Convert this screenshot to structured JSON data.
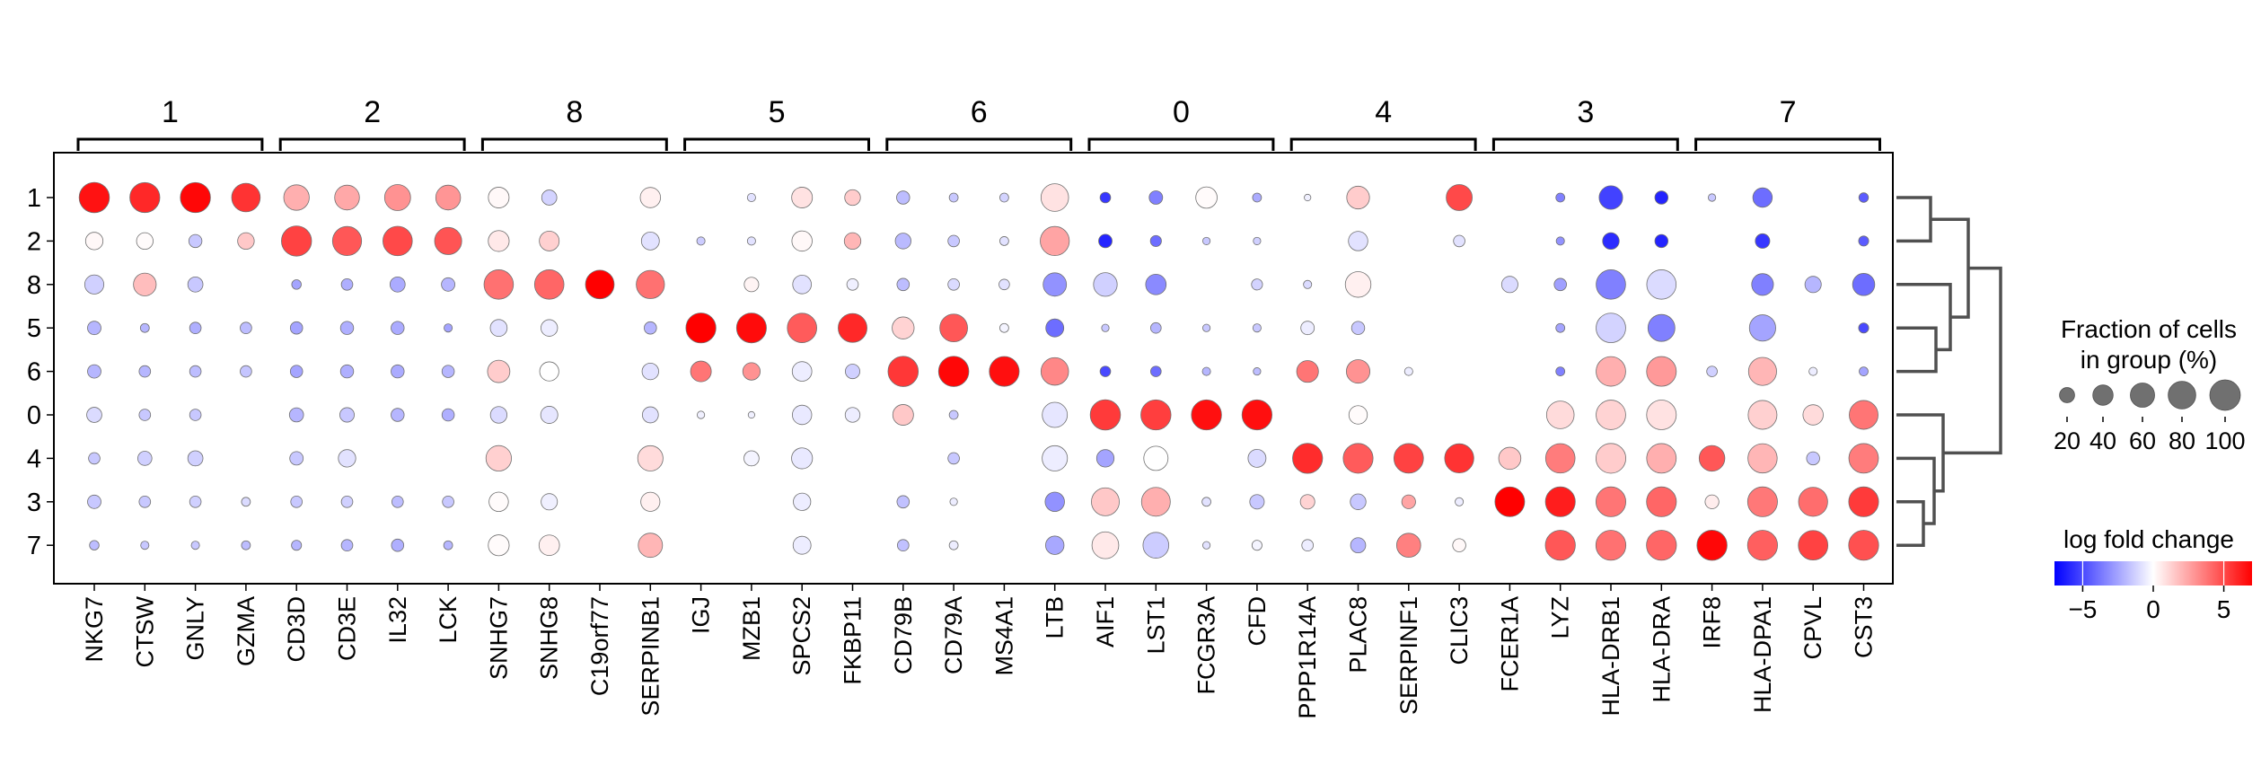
{
  "chart_data": {
    "type": "dotplot",
    "title": "",
    "xlabel": "",
    "ylabel": "",
    "groups": [
      {
        "label": "1",
        "genes": [
          "NKG7",
          "CTSW",
          "GNLY",
          "GZMA"
        ]
      },
      {
        "label": "2",
        "genes": [
          "CD3D",
          "CD3E",
          "IL32",
          "LCK"
        ]
      },
      {
        "label": "8",
        "genes": [
          "SNHG7",
          "SNHG8",
          "C19orf77",
          "SERPINB1"
        ]
      },
      {
        "label": "5",
        "genes": [
          "IGJ",
          "MZB1",
          "SPCS2",
          "FKBP11"
        ]
      },
      {
        "label": "6",
        "genes": [
          "CD79B",
          "CD79A",
          "MS4A1",
          "LTB"
        ]
      },
      {
        "label": "0",
        "genes": [
          "AIF1",
          "LST1",
          "FCGR3A",
          "CFD"
        ]
      },
      {
        "label": "4",
        "genes": [
          "PPP1R14A",
          "PLAC8",
          "SERPINF1",
          "CLIC3"
        ]
      },
      {
        "label": "3",
        "genes": [
          "FCER1A",
          "LYZ",
          "HLA-DRB1",
          "HLA-DRA"
        ]
      },
      {
        "label": "7",
        "genes": [
          "IRF8",
          "HLA-DPA1",
          "CPVL",
          "CST3"
        ]
      }
    ],
    "genes": [
      "NKG7",
      "CTSW",
      "GNLY",
      "GZMA",
      "CD3D",
      "CD3E",
      "IL32",
      "LCK",
      "SNHG7",
      "SNHG8",
      "C19orf77",
      "SERPINB1",
      "IGJ",
      "MZB1",
      "SPCS2",
      "FKBP11",
      "CD79B",
      "CD79A",
      "MS4A1",
      "LTB",
      "AIF1",
      "LST1",
      "FCGR3A",
      "CFD",
      "PPP1R14A",
      "PLAC8",
      "SERPINF1",
      "CLIC3",
      "FCER1A",
      "LYZ",
      "HLA-DRB1",
      "HLA-DRA",
      "IRF8",
      "HLA-DPA1",
      "CPVL",
      "CST3"
    ],
    "clusters": [
      "1",
      "2",
      "8",
      "5",
      "6",
      "0",
      "4",
      "3",
      "7"
    ],
    "fraction_pct": [
      [
        98,
        96,
        97,
        86,
        67,
        63,
        70,
        63,
        42,
        20,
        0,
        40,
        0,
        4,
        42,
        22,
        14,
        5,
        5,
        80,
        8,
        15,
        45,
        5,
        2,
        52,
        0,
        70,
        0,
        5,
        56,
        14,
        3,
        36,
        0,
        6
      ],
      [
        28,
        25,
        14,
        25,
        97,
        90,
        92,
        77,
        43,
        38,
        0,
        30,
        4,
        4,
        40,
        25,
        22,
        10,
        5,
        90,
        15,
        9,
        3,
        3,
        0,
        36,
        0,
        10,
        0,
        4,
        25,
        14,
        0,
        18,
        0,
        7
      ],
      [
        35,
        52,
        20,
        0,
        6,
        10,
        20,
        15,
        92,
        92,
        87,
        84,
        0,
        18,
        33,
        10,
        12,
        10,
        8,
        55,
        57,
        41,
        0,
        9,
        4,
        68,
        0,
        0,
        24,
        12,
        92,
        92,
        0,
        47,
        24,
        49
      ],
      [
        15,
        5,
        10,
        10,
        12,
        14,
        14,
        4,
        26,
        25,
        0,
        12,
        96,
        95,
        92,
        88,
        48,
        81,
        5,
        30,
        3,
        8,
        3,
        4,
        15,
        14,
        0,
        0,
        0,
        5,
        93,
        76,
        0,
        72,
        0,
        7
      ],
      [
        15,
        10,
        10,
        10,
        12,
        14,
        14,
        12,
        50,
        35,
        0,
        25,
        42,
        28,
        37,
        18,
        98,
        98,
        95,
        80,
        8,
        8,
        4,
        3,
        47,
        56,
        4,
        0,
        0,
        5,
        93,
        94,
        8,
        83,
        4,
        5
      ],
      [
        20,
        10,
        10,
        0,
        17,
        18,
        14,
        12,
        25,
        27,
        0,
        23,
        3,
        2,
        36,
        19,
        42,
        5,
        0,
        65,
        98,
        97,
        97,
        96,
        0,
        32,
        0,
        0,
        0,
        80,
        93,
        94,
        0,
        88,
        40,
        88
      ],
      [
        10,
        17,
        20,
        0,
        15,
        28,
        0,
        0,
        67,
        0,
        0,
        66,
        0,
        20,
        43,
        0,
        0,
        10,
        0,
        66,
        28,
        60,
        0,
        30,
        96,
        95,
        93,
        90,
        49,
        92,
        95,
        93,
        68,
        91,
        14,
        93
      ],
      [
        15,
        10,
        10,
        5,
        10,
        10,
        10,
        10,
        36,
        24,
        0,
        35,
        0,
        0,
        28,
        0,
        12,
        3,
        0,
        36,
        82,
        88,
        5,
        18,
        18,
        22,
        16,
        4,
        94,
        95,
        95,
        95,
        16,
        95,
        90,
        95
      ],
      [
        6,
        4,
        4,
        5,
        7,
        10,
        12,
        5,
        43,
        41,
        0,
        60,
        0,
        0,
        30,
        0,
        10,
        5,
        0,
        32,
        75,
        69,
        3,
        7,
        10,
        20,
        59,
        14,
        0,
        96,
        96,
        96,
        97,
        96,
        93,
        96
      ]
    ],
    "log_fold_change": [
      [
        6.5,
        5.9,
        6.8,
        5.6,
        2.2,
        2.4,
        3.0,
        2.9,
        0.2,
        -1.2,
        0,
        0.4,
        0,
        -0.8,
        0.8,
        1.4,
        -1.8,
        -1.5,
        -1.2,
        0.8,
        -5.5,
        -3.5,
        0.1,
        -2.3,
        -0.4,
        1.4,
        0,
        5.0,
        0,
        -3.5,
        -5.2,
        -6.0,
        -1.5,
        -4.0,
        0,
        -4.5
      ],
      [
        0.2,
        0.1,
        -1.5,
        1.5,
        5.2,
        4.6,
        5.0,
        4.7,
        0.6,
        1.3,
        0,
        -0.8,
        -1.4,
        -0.8,
        0.2,
        2.0,
        -1.9,
        -1.5,
        -0.8,
        2.5,
        -6.0,
        -4.0,
        -1.5,
        -1.3,
        0,
        -0.8,
        0,
        -0.8,
        0,
        -3.0,
        -5.8,
        -6.0,
        0,
        -5.5,
        0,
        -4.5
      ],
      [
        -1.3,
        1.8,
        -1.5,
        0,
        -2.5,
        -2.2,
        -2.3,
        -2.0,
        3.9,
        4.2,
        7.0,
        3.9,
        0,
        0.3,
        -0.8,
        -0.4,
        -1.8,
        -1.0,
        -0.8,
        -3.0,
        -1.3,
        -3.2,
        0,
        -1.2,
        -1.0,
        0.4,
        0,
        0,
        -1.0,
        -2.6,
        -3.5,
        -1.0,
        0,
        -3.5,
        -2.0,
        -4.0
      ],
      [
        -2.0,
        -2.0,
        -2.2,
        -1.8,
        -2.5,
        -2.2,
        -2.3,
        -2.5,
        -0.8,
        -0.5,
        0,
        -2.0,
        7.0,
        6.7,
        4.5,
        5.9,
        1.2,
        4.6,
        -0.3,
        -4.0,
        -1.5,
        -2.0,
        -1.5,
        -1.5,
        -0.5,
        -1.5,
        0,
        0,
        0,
        -2.5,
        -1.2,
        -3.5,
        0,
        -2.5,
        0,
        -5.0
      ],
      [
        -2.0,
        -2.0,
        -1.8,
        -1.6,
        -2.5,
        -2.2,
        -2.3,
        -2.0,
        1.4,
        0.0,
        0,
        -0.8,
        3.8,
        3.0,
        -0.5,
        -1.3,
        5.5,
        6.8,
        6.6,
        3.3,
        -5.0,
        -4.0,
        -2.0,
        -1.8,
        3.8,
        3.0,
        -0.5,
        0,
        0,
        -3.5,
        2.2,
        2.8,
        -1.3,
        2.0,
        -0.5,
        -2.5
      ],
      [
        -1.0,
        -1.5,
        -1.5,
        0,
        -2.0,
        -1.5,
        -2.0,
        -2.2,
        -1.0,
        -0.7,
        0,
        -0.8,
        -0.4,
        -0.4,
        -0.6,
        -0.5,
        1.5,
        -1.5,
        0,
        -0.7,
        5.4,
        5.3,
        6.6,
        6.6,
        0,
        0.1,
        0,
        0,
        -0.5,
        1.0,
        1.2,
        0.8,
        0,
        1.3,
        1.0,
        3.8
      ],
      [
        -1.5,
        -1.3,
        -1.3,
        0,
        -1.5,
        -0.8,
        0,
        0,
        1.3,
        0,
        0,
        1.0,
        0,
        -0.3,
        -0.6,
        0,
        0,
        -1.5,
        0,
        -0.5,
        -2.5,
        0.0,
        0,
        -1.0,
        5.8,
        4.5,
        5.2,
        5.6,
        1.5,
        3.6,
        1.4,
        2.2,
        4.6,
        2.0,
        -1.5,
        3.6
      ],
      [
        -1.5,
        -1.5,
        -1.3,
        -1.0,
        -1.5,
        -1.3,
        -1.8,
        -1.5,
        0.1,
        -0.4,
        0,
        0.4,
        0,
        0,
        -0.5,
        0,
        -1.7,
        -0.5,
        0,
        -3.0,
        1.5,
        2.2,
        -0.8,
        -1.5,
        1.2,
        -1.5,
        2.5,
        -0.5,
        7.0,
        6.2,
        3.8,
        4.2,
        0.5,
        3.7,
        4.0,
        5.4
      ],
      [
        -1.8,
        -1.5,
        -1.5,
        -1.8,
        -2.0,
        -2.0,
        -2.2,
        -2.0,
        0.1,
        0.4,
        0,
        2.0,
        0,
        0,
        -0.5,
        0,
        -1.7,
        -0.5,
        0,
        -2.4,
        0.6,
        -1.4,
        -0.8,
        -0.3,
        -0.5,
        -2.0,
        3.5,
        0.2,
        0,
        4.6,
        3.9,
        4.2,
        6.8,
        4.4,
        5.2,
        4.8
      ]
    ],
    "colorbar": {
      "title": "log fold change",
      "vmin": -7,
      "vmax": 7,
      "ticks": [
        "−5",
        "0",
        "5"
      ],
      "tick_values": [
        -5,
        0,
        5
      ],
      "colors": {
        "negative": "#0000ff",
        "neutral": "#ffffff",
        "positive": "#ff0000"
      }
    },
    "size_legend": {
      "title_line1": "Fraction of cells",
      "title_line2": "in group (%)",
      "labels": [
        "20",
        "40",
        "60",
        "80",
        "100"
      ],
      "values": [
        20,
        40,
        60,
        80,
        100
      ]
    },
    "dendrogram": {
      "linkage": [
        [
          "1",
          "2"
        ],
        [
          "5",
          "6"
        ],
        [
          "8",
          "5+6"
        ],
        [
          "1+2",
          "8+5+6"
        ],
        [
          "3",
          "7"
        ],
        [
          "4",
          "3+7"
        ],
        [
          "0",
          "4+3+7"
        ],
        [
          "1+2+8+5+6",
          "0+4+3+7"
        ]
      ]
    },
    "grid": false
  }
}
